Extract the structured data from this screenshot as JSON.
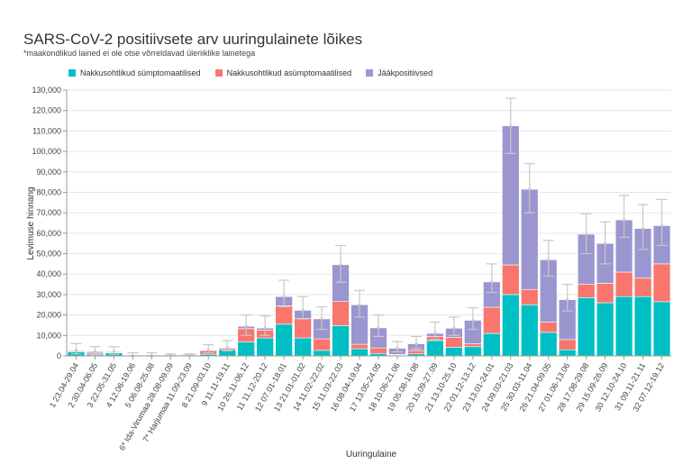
{
  "chart_data": {
    "type": "bar",
    "stacked": true,
    "title": "SARS-CoV-2 positiivsete arv uuringulainete lõikes",
    "subtitle": "*maakondlikud lained ei ole otse võrreldavad üleriiklike lainetega",
    "xlabel": "Uuringulaine",
    "ylabel": "Levimuse hinnang",
    "ylim": [
      0,
      130000
    ],
    "yticks": [
      0,
      10000,
      20000,
      30000,
      40000,
      50000,
      60000,
      70000,
      80000,
      90000,
      100000,
      110000,
      120000,
      130000
    ],
    "ytick_labels": [
      "0",
      "10,000",
      "20,000",
      "30,000",
      "40,000",
      "50,000",
      "60,000",
      "70,000",
      "80,000",
      "90,000",
      "100,000",
      "110,000",
      "120,000",
      "130,000"
    ],
    "grid": true,
    "legend_position": "top",
    "categories": [
      "1 23.04-29.04",
      "2 30.04-06.05",
      "3 22.05-31.05",
      "4 12.06-19.06",
      "5 06.08-25.08",
      "6* Ida-Virumaa 28.08-09.09",
      "7* Harjumaa 11.09-23.09",
      "8 21.09-03.10",
      "9 11.11-19.11",
      "10 26.11-06.12",
      "11 11.12-20.12",
      "12 07.01-18.01",
      "13 21.01-01.02",
      "14 11.02-22.02",
      "15 11.03-22.03",
      "16 08.04-19.04",
      "17 13.05-24.05",
      "18 10.06-21.06",
      "19 05.08-16.08",
      "20 15.09-27.09",
      "21 13.10-25.10",
      "22 01.12-13.12",
      "23 13.01-24.01",
      "24 09.03-21.03",
      "25 30.03-11.04",
      "26 21.04-09.05",
      "27 01.06-13.06",
      "28 17.08-29.08",
      "29 15.09-26.09",
      "30 12.10-24.10",
      "31 09.11-21.11",
      "32 07.12-19.12"
    ],
    "series": [
      {
        "name": "Nakkusohtlikud sümptomaatilised",
        "color": "#00BFC4",
        "values": [
          2000,
          800,
          1500,
          0,
          0,
          300,
          300,
          800,
          3000,
          6800,
          8800,
          15500,
          8800,
          2700,
          14800,
          3500,
          1200,
          400,
          1000,
          7500,
          4200,
          4500,
          11000,
          30000,
          25000,
          11500,
          3000,
          28500,
          26000,
          29000,
          29000,
          26500
        ]
      },
      {
        "name": "Nakkusohtlikud asümptomaatilised",
        "color": "#F8766D",
        "values": [
          500,
          600,
          300,
          0,
          0,
          200,
          400,
          1800,
          800,
          6500,
          3800,
          9000,
          9500,
          5600,
          11800,
          2200,
          2700,
          300,
          1600,
          2000,
          4800,
          1400,
          12800,
          14500,
          7500,
          5000,
          5000,
          6500,
          9500,
          12000,
          9000,
          18500
        ]
      },
      {
        "name": "Jääkpositiivsed",
        "color": "#9B96D0",
        "values": [
          300,
          700,
          400,
          0,
          0,
          0,
          0,
          200,
          200,
          1200,
          1000,
          4500,
          4000,
          9800,
          18000,
          19300,
          9800,
          3000,
          3300,
          1500,
          4500,
          11500,
          12400,
          68000,
          49000,
          30500,
          19500,
          24500,
          19500,
          25500,
          24300,
          18700
        ]
      }
    ],
    "error_bars": {
      "lower": [
        1000,
        300,
        800,
        0,
        0,
        200,
        300,
        1500,
        2500,
        10000,
        10000,
        24000,
        18000,
        13000,
        36000,
        19000,
        9500,
        2000,
        3500,
        8000,
        10000,
        13000,
        31000,
        99000,
        70000,
        39000,
        22000,
        50000,
        45000,
        58000,
        52000,
        54000
      ],
      "upper": [
        6000,
        4500,
        4500,
        1500,
        1500,
        1000,
        1000,
        5500,
        7500,
        20000,
        19500,
        37000,
        29000,
        24000,
        54000,
        32000,
        20000,
        7000,
        9500,
        16500,
        19000,
        23500,
        45000,
        126000,
        94000,
        56500,
        35000,
        69500,
        65500,
        78500,
        74000,
        76500
      ],
      "color": "#c8c8c8"
    }
  }
}
